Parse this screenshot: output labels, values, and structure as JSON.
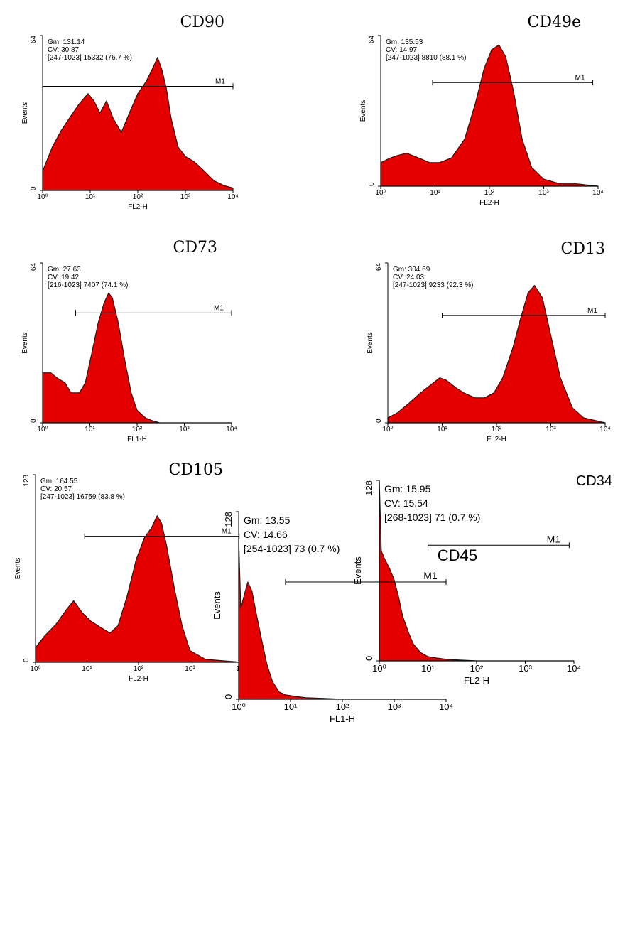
{
  "figure": {
    "background": "#ffffff",
    "fill_color": "#e50000",
    "outline_color": "#1a1a1a",
    "axis_color": "#000000"
  },
  "chart_data": [
    {
      "type": "area",
      "title": "CD90",
      "xlabel": "FL2-H",
      "ylabel": "Events",
      "xscale": "log",
      "xlim": [
        1,
        10000
      ],
      "ylim": [
        0,
        64
      ],
      "xticks": [
        "10⁰",
        "10¹",
        "10²",
        "10³",
        "10⁴"
      ],
      "yticks": [
        "0",
        "64"
      ],
      "stats": [
        "Gm: 131.14",
        "CV: 30.87",
        "[247-1023] 15332 (76.7 %)"
      ],
      "marker": {
        "label": "M1",
        "from": 1,
        "to": 10000,
        "y": 43,
        "end_ticks": true
      },
      "x": [
        1,
        1.6,
        2.5,
        4,
        6,
        9,
        12,
        16,
        22,
        30,
        45,
        70,
        100,
        150,
        200,
        260,
        320,
        400,
        500,
        700,
        1000,
        1500,
        2500,
        4000,
        6500,
        10000
      ],
      "y": [
        8,
        18,
        25,
        31,
        36,
        40,
        37,
        32,
        37,
        30,
        24,
        33,
        40,
        45,
        50,
        55,
        50,
        42,
        30,
        18,
        14,
        12,
        8,
        4,
        2,
        1
      ]
    },
    {
      "type": "area",
      "title": "CD49e",
      "xlabel": "FL2-H",
      "ylabel": "Events",
      "xscale": "log",
      "xlim": [
        1,
        10000
      ],
      "ylim": [
        0,
        64
      ],
      "xticks": [
        "10⁰",
        "10¹",
        "10²",
        "10³",
        "10⁴"
      ],
      "yticks": [
        "0",
        "64"
      ],
      "stats": [
        "Gm: 135.53",
        "CV: 14.97",
        "[247-1023] 8810 (88.1 %)"
      ],
      "marker": {
        "label": "M1",
        "from": 9,
        "to": 8000,
        "y": 44,
        "end_ticks": true
      },
      "x": [
        1,
        1.5,
        2,
        3,
        5,
        8,
        12,
        20,
        35,
        55,
        80,
        110,
        150,
        200,
        280,
        400,
        600,
        1000,
        2000,
        4000,
        10000
      ],
      "y": [
        10,
        12,
        13,
        14,
        12,
        10,
        10,
        12,
        20,
        35,
        50,
        58,
        60,
        55,
        40,
        20,
        8,
        3,
        1,
        1,
        0
      ]
    },
    {
      "type": "area",
      "title": "CD73",
      "xlabel": "FL1-H",
      "ylabel": "Events",
      "xscale": "log",
      "xlim": [
        1,
        10000
      ],
      "ylim": [
        0,
        64
      ],
      "xticks": [
        "10⁰",
        "10¹",
        "10²",
        "10³",
        "10⁴"
      ],
      "yticks": [
        "0",
        "64"
      ],
      "stats": [
        "Gm: 27.63",
        "CV: 19.42",
        "[216-1023] 7407 (74.1 %)"
      ],
      "marker": {
        "label": "M1",
        "from": 5,
        "to": 10000,
        "y": 44,
        "end_ticks": true
      },
      "x": [
        1,
        1.5,
        2,
        3,
        4,
        6,
        8,
        11,
        15,
        20,
        25,
        30,
        40,
        55,
        75,
        100,
        150,
        200,
        300,
        10000
      ],
      "y": [
        20,
        20,
        18,
        16,
        12,
        12,
        16,
        28,
        40,
        48,
        52,
        50,
        40,
        25,
        12,
        5,
        2,
        1,
        0,
        0
      ]
    },
    {
      "type": "area",
      "title": "CD13",
      "xlabel": "FL2-H",
      "ylabel": "Events",
      "xscale": "log",
      "xlim": [
        1,
        10000
      ],
      "ylim": [
        0,
        64
      ],
      "xticks": [
        "10⁰",
        "10¹",
        "10²",
        "10³",
        "10⁴"
      ],
      "yticks": [
        "0",
        "64"
      ],
      "stats": [
        "Gm: 304.69",
        "CV: 24.03",
        "[247-1023] 9233 (92.3 %)"
      ],
      "marker": {
        "label": "M1",
        "from": 10,
        "to": 10000,
        "y": 43,
        "end_ticks": true
      },
      "x": [
        1,
        1.5,
        2.5,
        4,
        6,
        9,
        12,
        18,
        25,
        40,
        60,
        90,
        130,
        200,
        280,
        380,
        500,
        700,
        1000,
        1500,
        2500,
        4000,
        10000
      ],
      "y": [
        2,
        4,
        8,
        12,
        15,
        18,
        17,
        14,
        12,
        10,
        10,
        12,
        18,
        30,
        42,
        52,
        55,
        50,
        35,
        18,
        6,
        2,
        0
      ]
    },
    {
      "type": "area",
      "title": "CD105",
      "xlabel": "FL2-H",
      "ylabel": "Events",
      "xscale": "log",
      "xlim": [
        1,
        10000
      ],
      "ylim": [
        0,
        128
      ],
      "xticks": [
        "10⁰",
        "10¹",
        "10²",
        "10³",
        "10⁴"
      ],
      "yticks": [
        "0",
        "128"
      ],
      "stats": [
        "Gm: 164.55",
        "CV: 20.57",
        "[247-1023] 16759 (83.8 %)"
      ],
      "marker": {
        "label": "M1",
        "from": 9,
        "to": 9000,
        "y": 86,
        "end_ticks": true
      },
      "x": [
        1,
        1.5,
        2.5,
        4,
        5.5,
        8,
        12,
        18,
        28,
        40,
        60,
        90,
        130,
        180,
        230,
        280,
        350,
        500,
        700,
        1000,
        2000,
        10000
      ],
      "y": [
        10,
        18,
        26,
        36,
        42,
        34,
        28,
        24,
        20,
        25,
        45,
        70,
        85,
        92,
        100,
        95,
        80,
        50,
        25,
        8,
        2,
        0
      ]
    },
    {
      "type": "area",
      "title": "CD34",
      "xlabel": "FL2-H",
      "ylabel": "Events",
      "xscale": "log",
      "xlim": [
        1,
        10000
      ],
      "ylim": [
        0,
        128
      ],
      "xticks": [
        "10⁰",
        "10¹",
        "10²",
        "10³",
        "10⁴"
      ],
      "yticks": [
        "0",
        "128"
      ],
      "stats": [
        "Gm: 15.95",
        "CV: 15.54",
        "[268-1023] 71 (0.7 %)"
      ],
      "marker": {
        "label": "M1",
        "from": 10,
        "to": 8000,
        "y": 82,
        "end_ticks": true
      },
      "x": [
        1,
        1.1,
        1.3,
        1.6,
        2,
        2.5,
        3,
        4,
        5,
        7,
        10,
        15,
        25,
        50,
        100,
        10000
      ],
      "y": [
        128,
        78,
        72,
        66,
        58,
        45,
        32,
        20,
        12,
        6,
        3,
        2,
        1,
        0.5,
        0,
        0
      ]
    },
    {
      "type": "area",
      "title": "CD45",
      "xlabel": "FL1-H",
      "ylabel": "Events",
      "xscale": "log",
      "xlim": [
        1,
        10000
      ],
      "ylim": [
        0,
        128
      ],
      "xticks": [
        "10⁰",
        "10¹",
        "10²",
        "10³",
        "10⁴"
      ],
      "yticks": [
        "0",
        "128"
      ],
      "stats": [
        "Gm: 13.55",
        "CV: 14.66",
        "[254-1023] 73 (0.7 %)"
      ],
      "marker": {
        "label": "M1",
        "from": 8,
        "to": 10000,
        "y": 80,
        "end_ticks": true
      },
      "x": [
        1,
        1.1,
        1.3,
        1.5,
        1.8,
        2.2,
        2.8,
        3.5,
        4.5,
        6,
        8,
        12,
        20,
        50,
        100,
        10000
      ],
      "y": [
        110,
        62,
        72,
        80,
        74,
        58,
        40,
        24,
        12,
        5,
        3,
        2,
        1,
        0.5,
        0,
        0
      ]
    }
  ]
}
